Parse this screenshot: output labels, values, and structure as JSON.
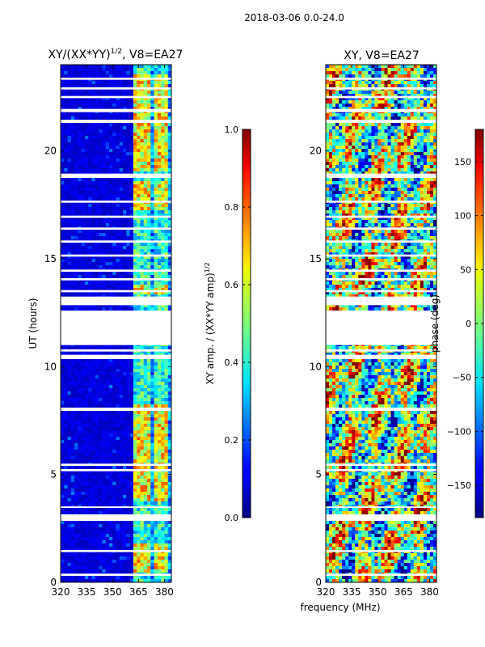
{
  "suptitle": "2018-03-06 0.0-24.0",
  "shared_xlabel": "frequency (MHz)",
  "chart_data": [
    {
      "type": "heatmap",
      "title": "XY/(XX*YY)",
      "title_exp": "1/2",
      "title_suffix": ", V8=EA27",
      "xlabel": "",
      "ylabel": "UT (hours)",
      "xlim": [
        320,
        384
      ],
      "ylim": [
        0,
        24
      ],
      "xticks": [
        320,
        335,
        350,
        365,
        380
      ],
      "yticks": [
        0,
        5,
        10,
        15,
        20
      ],
      "colormap": "jet",
      "colorbar": {
        "label": "XY amp. / (XX*YY amp)",
        "label_exp": "1/2",
        "range": [
          0.0,
          1.0
        ],
        "ticks": [
          "0.0",
          "0.2",
          "0.4",
          "0.6",
          "0.8",
          "1.0"
        ],
        "tick_values": [
          0.0,
          0.2,
          0.4,
          0.6,
          0.8,
          1.0
        ]
      },
      "bright_bands_mhz": [
        [
          363,
          367
        ],
        [
          368,
          372
        ],
        [
          374,
          378
        ],
        [
          379,
          382
        ]
      ],
      "bright_hours": [
        [
          0.5,
          1.8
        ],
        [
          3.8,
          8.2
        ],
        [
          13.4,
          13.8
        ],
        [
          17.2,
          18.6
        ],
        [
          19.0,
          23.5
        ]
      ]
    },
    {
      "type": "heatmap",
      "title": "XY, V8=EA27",
      "xlabel": "",
      "ylabel": "",
      "xlim": [
        320,
        384
      ],
      "ylim": [
        0,
        24
      ],
      "xticks": [
        320,
        335,
        350,
        365,
        380
      ],
      "yticks": [
        0,
        5,
        10,
        15,
        20
      ],
      "colormap": "jet",
      "colorbar": {
        "label": "phase (deg)",
        "range": [
          -180,
          180
        ],
        "ticks": [
          "150",
          "100",
          "50",
          "0",
          "−50",
          "−100",
          "−150"
        ],
        "tick_values": [
          150,
          100,
          50,
          0,
          -50,
          -100,
          -150
        ]
      }
    }
  ],
  "gaps_hours": [
    [
      0.3,
      0.4
    ],
    [
      1.4,
      1.5
    ],
    [
      2.85,
      3.15
    ],
    [
      3.45,
      3.52
    ],
    [
      5.15,
      5.25
    ],
    [
      5.4,
      5.5
    ],
    [
      7.95,
      8.1
    ],
    [
      10.35,
      10.55
    ],
    [
      10.7,
      10.8
    ],
    [
      11.0,
      12.6
    ],
    [
      12.85,
      13.25
    ],
    [
      13.45,
      13.55
    ],
    [
      14.0,
      14.1
    ],
    [
      14.4,
      14.5
    ],
    [
      15.1,
      15.2
    ],
    [
      15.75,
      15.85
    ],
    [
      16.35,
      16.45
    ],
    [
      16.9,
      17.0
    ],
    [
      17.6,
      17.7
    ],
    [
      18.75,
      18.95
    ],
    [
      21.3,
      21.45
    ],
    [
      21.8,
      21.95
    ],
    [
      22.45,
      22.55
    ],
    [
      22.85,
      22.95
    ],
    [
      23.3,
      23.4
    ]
  ]
}
